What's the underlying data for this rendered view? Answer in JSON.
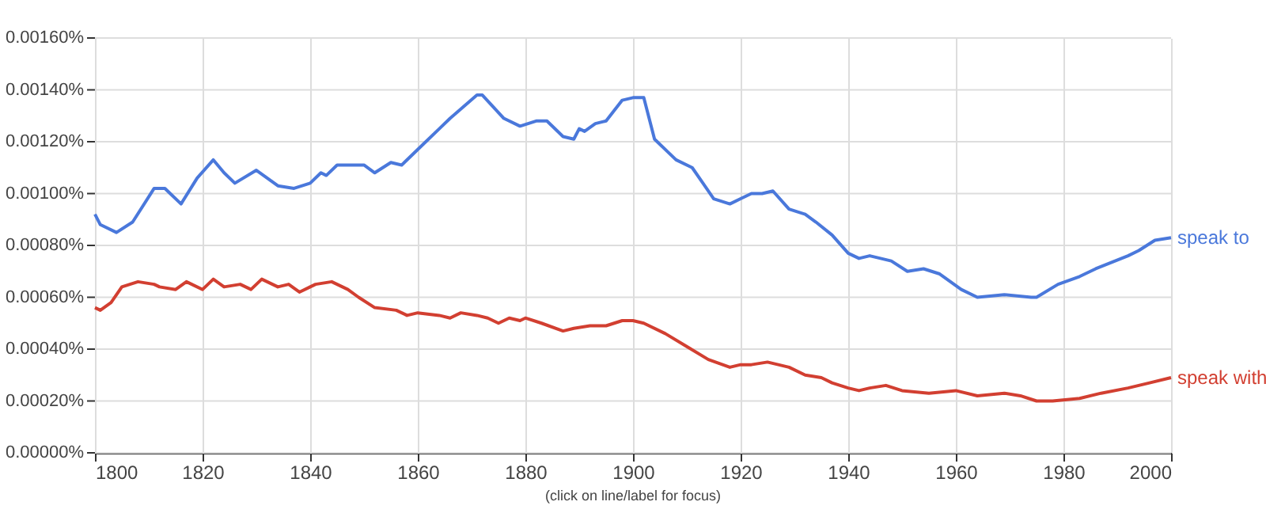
{
  "chart_data": {
    "type": "line",
    "annotations": [
      "(click on line/label for focus)"
    ],
    "xlim": [
      1800,
      2000
    ],
    "xticks": [
      1800,
      1820,
      1840,
      1860,
      1880,
      1900,
      1920,
      1940,
      1960,
      1980,
      2000
    ],
    "ylim": [
      0,
      0.0016
    ],
    "yticks": [
      {
        "value": 0,
        "label": "0.00000%"
      },
      {
        "value": 0.0002,
        "label": "0.00020%"
      },
      {
        "value": 0.0004,
        "label": "0.00040%"
      },
      {
        "value": 0.0006,
        "label": "0.00060%"
      },
      {
        "value": 0.0008,
        "label": "0.00080%"
      },
      {
        "value": 0.001,
        "label": "0.00100%"
      },
      {
        "value": 0.0012,
        "label": "0.00120%"
      },
      {
        "value": 0.0014,
        "label": "0.00140%"
      },
      {
        "value": 0.0016,
        "label": "0.00160%"
      }
    ],
    "grid": true,
    "legend": false,
    "marker": "none",
    "line_style": "solid",
    "series": [
      {
        "name": "speak to",
        "color": "#4a78db",
        "x": [
          1800,
          1801,
          1804,
          1807,
          1811,
          1813,
          1816,
          1819,
          1822,
          1824,
          1826,
          1830,
          1834,
          1837,
          1840,
          1842,
          1843,
          1845,
          1850,
          1852,
          1855,
          1857,
          1861,
          1864,
          1866,
          1871,
          1872,
          1876,
          1879,
          1882,
          1884,
          1887,
          1889,
          1890,
          1891,
          1893,
          1895,
          1898,
          1900,
          1902,
          1904,
          1908,
          1911,
          1913,
          1915,
          1918,
          1920,
          1922,
          1924,
          1926,
          1929,
          1932,
          1934,
          1937,
          1940,
          1942,
          1944,
          1948,
          1951,
          1954,
          1957,
          1961,
          1964,
          1969,
          1974,
          1975,
          1979,
          1983,
          1986,
          1992,
          1994,
          1997,
          2000
        ],
        "values": [
          0.00092,
          0.00088,
          0.00085,
          0.00089,
          0.00102,
          0.00102,
          0.00096,
          0.00106,
          0.00113,
          0.00108,
          0.00104,
          0.00109,
          0.00103,
          0.00102,
          0.00104,
          0.00108,
          0.00107,
          0.00111,
          0.00111,
          0.00108,
          0.00112,
          0.00111,
          0.00119,
          0.00125,
          0.00129,
          0.00138,
          0.00138,
          0.00129,
          0.00126,
          0.00128,
          0.00128,
          0.00122,
          0.00121,
          0.00125,
          0.00124,
          0.00127,
          0.00128,
          0.00136,
          0.00137,
          0.00137,
          0.00121,
          0.00113,
          0.0011,
          0.00104,
          0.00098,
          0.00096,
          0.00098,
          0.001,
          0.001,
          0.00101,
          0.00094,
          0.00092,
          0.00089,
          0.00084,
          0.00077,
          0.00075,
          0.00076,
          0.00074,
          0.0007,
          0.00071,
          0.00069,
          0.00063,
          0.0006,
          0.00061,
          0.0006,
          0.0006,
          0.00065,
          0.00068,
          0.00071,
          0.00076,
          0.00078,
          0.00082,
          0.00083
        ]
      },
      {
        "name": "speak with",
        "color": "#d23f31",
        "x": [
          1800,
          1801,
          1803,
          1805,
          1808,
          1811,
          1812,
          1815,
          1817,
          1820,
          1822,
          1824,
          1827,
          1829,
          1831,
          1834,
          1836,
          1838,
          1840,
          1841,
          1844,
          1847,
          1849,
          1852,
          1856,
          1858,
          1860,
          1864,
          1866,
          1868,
          1871,
          1873,
          1875,
          1877,
          1879,
          1880,
          1883,
          1887,
          1889,
          1892,
          1895,
          1898,
          1900,
          1902,
          1906,
          1910,
          1914,
          1918,
          1920,
          1922,
          1925,
          1929,
          1932,
          1935,
          1937,
          1940,
          1942,
          1944,
          1947,
          1950,
          1955,
          1960,
          1964,
          1969,
          1972,
          1975,
          1978,
          1983,
          1987,
          1992,
          1996,
          2000
        ],
        "values": [
          0.00056,
          0.00055,
          0.00058,
          0.00064,
          0.00066,
          0.00065,
          0.00064,
          0.00063,
          0.00066,
          0.00063,
          0.00067,
          0.00064,
          0.00065,
          0.00063,
          0.00067,
          0.00064,
          0.00065,
          0.00062,
          0.00064,
          0.00065,
          0.00066,
          0.00063,
          0.0006,
          0.00056,
          0.00055,
          0.00053,
          0.00054,
          0.00053,
          0.00052,
          0.00054,
          0.00053,
          0.00052,
          0.0005,
          0.00052,
          0.00051,
          0.00052,
          0.0005,
          0.00047,
          0.00048,
          0.00049,
          0.00049,
          0.00051,
          0.00051,
          0.0005,
          0.00046,
          0.00041,
          0.00036,
          0.00033,
          0.00034,
          0.00034,
          0.00035,
          0.00033,
          0.0003,
          0.00029,
          0.00027,
          0.00025,
          0.00024,
          0.00025,
          0.00026,
          0.00024,
          0.00023,
          0.00024,
          0.00022,
          0.00023,
          0.00022,
          0.0002,
          0.0002,
          0.00021,
          0.00023,
          0.00025,
          0.00027,
          0.00029
        ]
      }
    ]
  }
}
